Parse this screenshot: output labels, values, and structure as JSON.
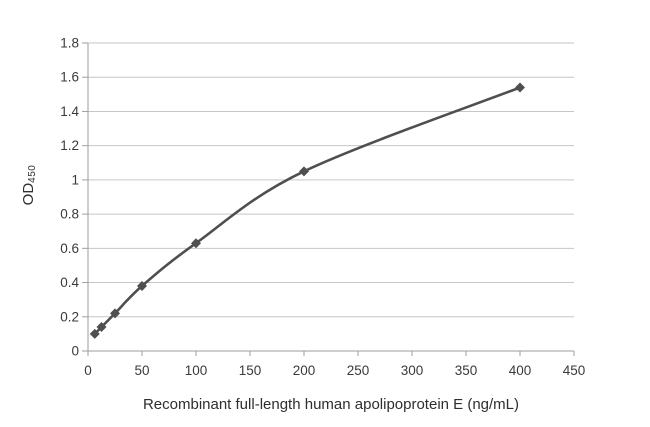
{
  "figure": {
    "background": "#ffffff"
  },
  "chart_data": {
    "type": "line",
    "title": "",
    "xlabel": "Recombinant full-length human apolipoprotein E (ng/mL)",
    "ylabel": "OD",
    "ylabel_subscript": "450",
    "x": [
      6.25,
      12.5,
      25,
      50,
      100,
      200,
      400
    ],
    "y": [
      0.1,
      0.14,
      0.22,
      0.38,
      0.63,
      1.05,
      1.54
    ],
    "xlim": [
      0,
      450
    ],
    "ylim": [
      0,
      1.8
    ],
    "x_ticks": [
      0,
      50,
      100,
      150,
      200,
      250,
      300,
      350,
      400,
      450
    ],
    "y_ticks": [
      0,
      0.2,
      0.4,
      0.6,
      0.8,
      1,
      1.2,
      1.4,
      1.6,
      1.8
    ],
    "grid": "horizontal-only",
    "legend": "none",
    "marker": "diamond",
    "colors": {
      "line": "#4f4f4f",
      "marker": "#4f4f4f",
      "gridline": "#c6c6c6",
      "axis": "#9e9e9e",
      "tick": "#9e9e9e",
      "text": "#3a3a3a",
      "background": "#ffffff"
    }
  }
}
